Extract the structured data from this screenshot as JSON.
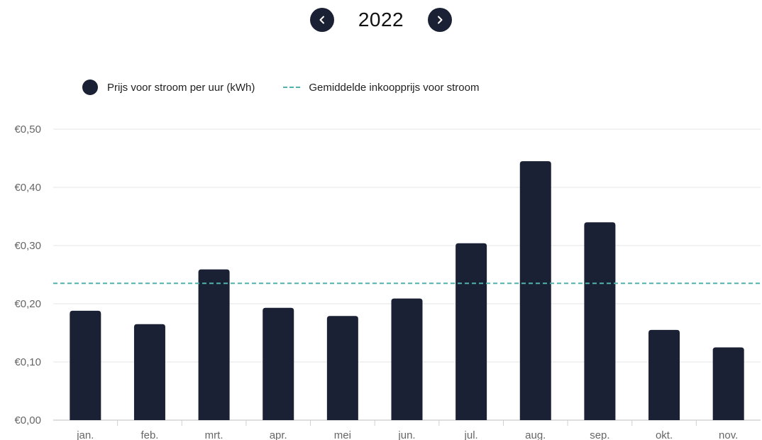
{
  "header": {
    "year": "2022",
    "prev_icon": "chevron-left-icon",
    "next_icon": "chevron-right-icon"
  },
  "legend": {
    "series_label": "Prijs voor stroom per uur (kWh)",
    "average_label": "Gemiddelde inkoopprijs voor stroom"
  },
  "colors": {
    "bar": "#1b2134",
    "average_line": "#4fb3ae",
    "grid": "#e6e6e6",
    "axis_text": "#666666"
  },
  "chart_data": {
    "type": "bar",
    "categories": [
      "jan.",
      "feb.",
      "mrt.",
      "apr.",
      "mei",
      "jun.",
      "jul.",
      "aug.",
      "sep.",
      "okt.",
      "nov."
    ],
    "series": [
      {
        "name": "Prijs voor stroom per uur (kWh)",
        "values": [
          0.188,
          0.165,
          0.259,
          0.193,
          0.179,
          0.209,
          0.304,
          0.445,
          0.34,
          0.155,
          0.125
        ]
      }
    ],
    "average_line": {
      "name": "Gemiddelde inkoopprijs voor stroom",
      "value": 0.235
    },
    "ylim": [
      0,
      0.5
    ],
    "yticks": [
      0,
      0.1,
      0.2,
      0.3,
      0.4,
      0.5
    ],
    "ytick_labels": [
      "€0,00",
      "€0,10",
      "€0,20",
      "€0,30",
      "€0,40",
      "€0,50"
    ],
    "grid": true,
    "legend_position": "top-left",
    "xlabel": "",
    "ylabel": ""
  }
}
